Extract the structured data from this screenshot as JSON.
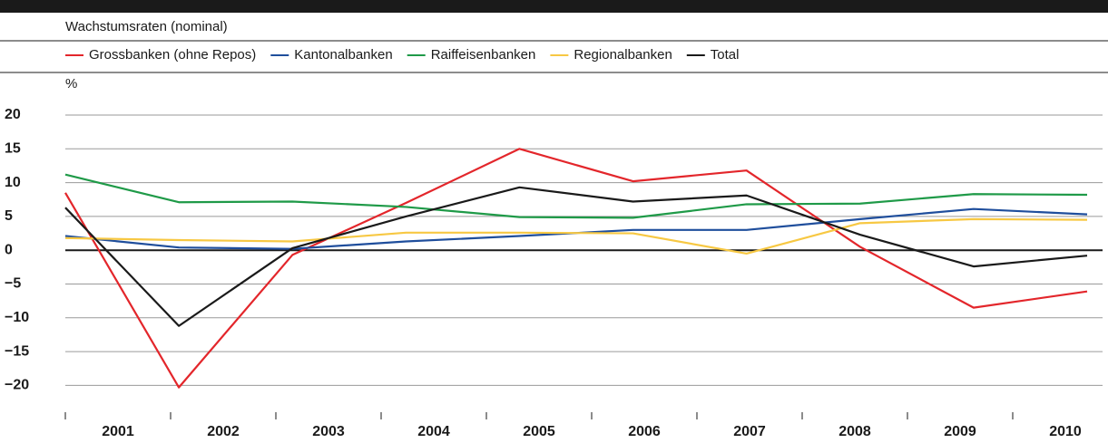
{
  "chart_data": {
    "type": "line",
    "subtitle": "Wachstumsraten (nominal)",
    "y_unit": "%",
    "categories": [
      "2001",
      "2002",
      "2003",
      "2004",
      "2005",
      "2006",
      "2007",
      "2008",
      "2009",
      "2010"
    ],
    "series": [
      {
        "name": "Grossbanken (ohne Repos)",
        "color": "#e3262b",
        "values": [
          8.5,
          -20.3,
          -0.7,
          7,
          15,
          10.2,
          11.8,
          0.5,
          -8.5,
          -6.1
        ]
      },
      {
        "name": "Kantonalbanken",
        "color": "#1f4e9c",
        "values": [
          2.1,
          0.4,
          0.2,
          1.3,
          2.1,
          3.0,
          3.0,
          4.6,
          6.1,
          5.3
        ]
      },
      {
        "name": "Raiffeisenbanken",
        "color": "#1f9a48",
        "values": [
          11.2,
          7.1,
          7.2,
          6.4,
          4.9,
          4.8,
          6.8,
          6.9,
          8.3,
          8.2
        ]
      },
      {
        "name": "Regionalbanken",
        "color": "#f7c843",
        "values": [
          1.8,
          1.5,
          1.3,
          2.6,
          2.6,
          2.5,
          -0.5,
          4.0,
          4.6,
          4.5
        ]
      },
      {
        "name": "Total",
        "color": "#1a1a1a",
        "values": [
          6.3,
          -11.2,
          0.3,
          5.0,
          9.3,
          7.2,
          8.1,
          2.3,
          -2.4,
          -0.8
        ]
      }
    ],
    "ylim": [
      -25,
      21.5
    ],
    "yticks": [
      20,
      15,
      10,
      5,
      0,
      {
        "value": -5,
        "label": "−5"
      },
      {
        "value": -10,
        "label": "−10"
      },
      {
        "value": -15,
        "label": "−15"
      },
      {
        "value": -20,
        "label": "−20"
      }
    ],
    "grid": true
  }
}
